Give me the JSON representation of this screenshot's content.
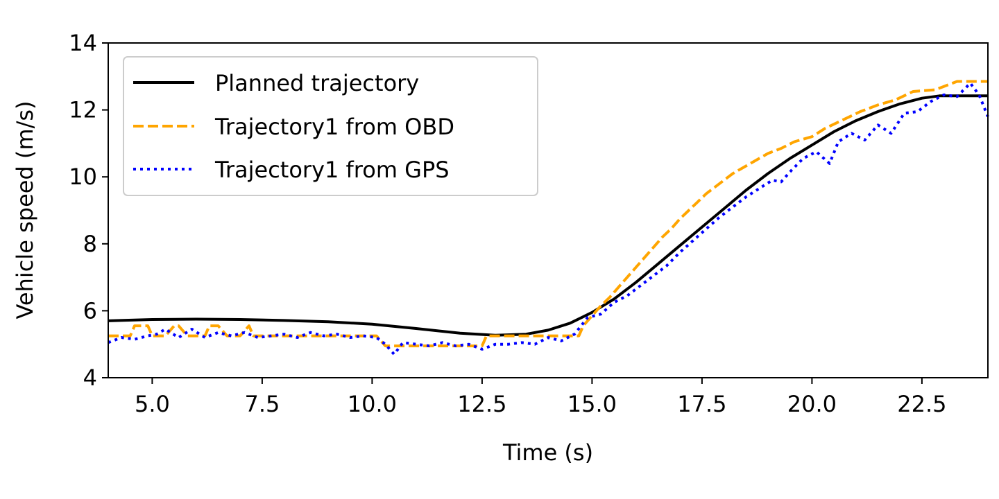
{
  "chart_data": {
    "type": "line",
    "title": "",
    "xlabel": "Time (s)",
    "ylabel": "Vehicle speed (m/s)",
    "xlim": [
      4.0,
      24.0
    ],
    "ylim": [
      4,
      14
    ],
    "xticks": [
      5.0,
      7.5,
      10.0,
      12.5,
      15.0,
      17.5,
      20.0,
      22.5
    ],
    "xtick_labels": [
      "5.0",
      "7.5",
      "10.0",
      "12.5",
      "15.0",
      "17.5",
      "20.0",
      "22.5"
    ],
    "yticks": [
      4,
      6,
      8,
      10,
      12,
      14
    ],
    "ytick_labels": [
      "4",
      "6",
      "8",
      "10",
      "12",
      "14"
    ],
    "grid": false,
    "legend_position": "top-left",
    "series": [
      {
        "name": "Planned trajectory",
        "color": "#000000",
        "style": "solid",
        "x": [
          4.0,
          5.0,
          6.0,
          7.0,
          8.0,
          9.0,
          10.0,
          11.0,
          12.0,
          12.8,
          13.5,
          14.0,
          14.5,
          15.0,
          15.5,
          16.0,
          16.5,
          17.0,
          17.5,
          18.0,
          18.5,
          19.0,
          19.5,
          20.0,
          20.5,
          21.0,
          21.5,
          22.0,
          22.5,
          22.9,
          23.5,
          24.0
        ],
        "y": [
          5.7,
          5.74,
          5.75,
          5.74,
          5.71,
          5.67,
          5.6,
          5.47,
          5.33,
          5.27,
          5.3,
          5.42,
          5.63,
          5.95,
          6.35,
          6.85,
          7.4,
          7.95,
          8.5,
          9.05,
          9.6,
          10.1,
          10.55,
          10.95,
          11.35,
          11.68,
          11.95,
          12.18,
          12.35,
          12.42,
          12.42,
          12.42
        ]
      },
      {
        "name": "Trajectory1 from OBD",
        "color": "#ffa500",
        "style": "dashed",
        "x": [
          4.0,
          4.5,
          4.6,
          4.9,
          5.0,
          5.3,
          5.5,
          5.6,
          5.8,
          6.2,
          6.3,
          6.5,
          6.7,
          7.0,
          7.2,
          7.3,
          9.0,
          9.2,
          10.1,
          10.3,
          12.5,
          12.6,
          13.3,
          13.4,
          14.7,
          14.8,
          15.0,
          15.2,
          15.4,
          15.6,
          15.8,
          16.0,
          16.2,
          16.4,
          16.6,
          16.8,
          17.0,
          17.2,
          17.4,
          17.6,
          17.8,
          18.0,
          18.2,
          18.4,
          18.6,
          18.8,
          19.0,
          19.3,
          19.6,
          20.0,
          20.3,
          20.7,
          21.1,
          21.5,
          21.9,
          22.3,
          22.8,
          23.3,
          24.0
        ],
        "y": [
          5.25,
          5.25,
          5.55,
          5.55,
          5.25,
          5.25,
          5.55,
          5.55,
          5.25,
          5.25,
          5.55,
          5.55,
          5.25,
          5.25,
          5.55,
          5.25,
          5.25,
          5.25,
          5.25,
          4.95,
          4.95,
          5.25,
          5.25,
          5.25,
          5.25,
          5.55,
          5.85,
          6.15,
          6.4,
          6.7,
          7.0,
          7.3,
          7.6,
          7.9,
          8.2,
          8.45,
          8.75,
          9.0,
          9.25,
          9.5,
          9.7,
          9.9,
          10.1,
          10.25,
          10.4,
          10.55,
          10.7,
          10.85,
          11.05,
          11.2,
          11.45,
          11.7,
          11.95,
          12.15,
          12.3,
          12.55,
          12.6,
          12.85,
          12.85
        ]
      },
      {
        "name": "Trajectory1 from GPS",
        "color": "#0000ff",
        "style": "dotted",
        "x": [
          4.0,
          4.3,
          4.6,
          4.9,
          5.1,
          5.3,
          5.6,
          5.9,
          6.2,
          6.5,
          6.8,
          7.1,
          7.4,
          7.7,
          8.0,
          8.3,
          8.6,
          8.9,
          9.2,
          9.5,
          9.8,
          10.1,
          10.3,
          10.5,
          10.7,
          11.0,
          11.3,
          11.6,
          11.9,
          12.2,
          12.5,
          12.8,
          13.1,
          13.4,
          13.7,
          14.0,
          14.3,
          14.6,
          14.9,
          15.2,
          15.5,
          15.8,
          16.1,
          16.4,
          16.7,
          17.0,
          17.3,
          17.6,
          17.9,
          18.2,
          18.5,
          18.8,
          19.1,
          19.3,
          19.5,
          19.8,
          20.1,
          20.4,
          20.6,
          20.9,
          21.2,
          21.5,
          21.8,
          22.1,
          22.4,
          22.7,
          23.0,
          23.3,
          23.6,
          23.8,
          24.0
        ],
        "y": [
          5.05,
          5.2,
          5.15,
          5.25,
          5.3,
          5.45,
          5.2,
          5.45,
          5.2,
          5.35,
          5.25,
          5.35,
          5.2,
          5.25,
          5.3,
          5.2,
          5.35,
          5.25,
          5.3,
          5.2,
          5.25,
          5.2,
          5.0,
          4.7,
          5.05,
          5.0,
          4.95,
          5.05,
          4.95,
          5.0,
          4.85,
          5.0,
          5.0,
          5.05,
          5.0,
          5.2,
          5.1,
          5.3,
          5.8,
          5.9,
          6.25,
          6.45,
          6.75,
          7.05,
          7.35,
          7.75,
          8.1,
          8.45,
          8.8,
          9.1,
          9.4,
          9.65,
          9.9,
          9.85,
          10.15,
          10.55,
          10.75,
          10.4,
          11.05,
          11.3,
          11.1,
          11.55,
          11.3,
          11.9,
          11.95,
          12.25,
          12.45,
          12.4,
          12.8,
          12.45,
          11.8
        ]
      }
    ]
  }
}
